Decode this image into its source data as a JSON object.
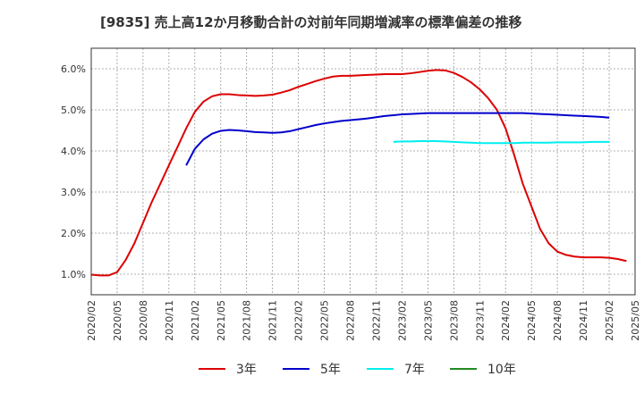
{
  "chart_data": {
    "type": "line",
    "title": "[9835]  売上高12か月移動合計の対前年同期増減率の標準偏差の推移",
    "xlabel": "",
    "ylabel": "",
    "ylim": [
      0.5,
      6.5
    ],
    "y_ticks": [
      1.0,
      2.0,
      3.0,
      4.0,
      5.0,
      6.0
    ],
    "y_tick_labels": [
      "1.0%",
      "2.0%",
      "3.0%",
      "4.0%",
      "5.0%",
      "6.0%"
    ],
    "x_tick_labels": [
      "2020/02",
      "2020/05",
      "2020/08",
      "2020/11",
      "2021/02",
      "2021/05",
      "2021/08",
      "2021/11",
      "2022/02",
      "2022/05",
      "2022/08",
      "2022/11",
      "2023/02",
      "2023/05",
      "2023/08",
      "2023/11",
      "2024/02",
      "2024/05",
      "2024/08",
      "2024/11",
      "2025/02",
      "2025/05"
    ],
    "x_range": [
      "2020/02",
      "2025/05"
    ],
    "grid": true,
    "legend_position": "bottom",
    "series": [
      {
        "name": "3年",
        "color": "#dd0000",
        "start": "2020/02",
        "values": [
          0.99,
          0.97,
          0.97,
          1.05,
          1.35,
          1.75,
          2.25,
          2.75,
          3.2,
          3.65,
          4.1,
          4.55,
          4.95,
          5.2,
          5.33,
          5.38,
          5.38,
          5.36,
          5.35,
          5.34,
          5.35,
          5.37,
          5.42,
          5.48,
          5.56,
          5.63,
          5.7,
          5.76,
          5.81,
          5.83,
          5.83,
          5.84,
          5.85,
          5.86,
          5.87,
          5.87,
          5.87,
          5.89,
          5.92,
          5.95,
          5.97,
          5.96,
          5.9,
          5.8,
          5.67,
          5.5,
          5.28,
          5.0,
          4.55,
          3.9,
          3.2,
          2.65,
          2.1,
          1.75,
          1.55,
          1.47,
          1.43,
          1.41,
          1.41,
          1.41,
          1.4,
          1.37,
          1.32
        ]
      },
      {
        "name": "5年",
        "color": "#0000cc",
        "start": "2021/01",
        "values": [
          3.65,
          4.05,
          4.28,
          4.42,
          4.49,
          4.51,
          4.5,
          4.48,
          4.46,
          4.45,
          4.44,
          4.45,
          4.48,
          4.53,
          4.58,
          4.63,
          4.67,
          4.7,
          4.73,
          4.75,
          4.77,
          4.79,
          4.82,
          4.85,
          4.87,
          4.89,
          4.9,
          4.91,
          4.92,
          4.92,
          4.92,
          4.92,
          4.92,
          4.92,
          4.92,
          4.92,
          4.92,
          4.92,
          4.92,
          4.92,
          4.91,
          4.9,
          4.89,
          4.88,
          4.87,
          4.86,
          4.85,
          4.84,
          4.83,
          4.81
        ]
      },
      {
        "name": "7年",
        "color": "#00eeee",
        "start": "2023/01",
        "values": [
          4.22,
          4.23,
          4.23,
          4.24,
          4.24,
          4.24,
          4.23,
          4.22,
          4.21,
          4.2,
          4.19,
          4.19,
          4.19,
          4.19,
          4.19,
          4.2,
          4.2,
          4.2,
          4.2,
          4.21,
          4.21,
          4.21,
          4.21,
          4.22,
          4.22,
          4.22
        ]
      },
      {
        "name": "10年",
        "color": "#228b22",
        "start": "2020/02",
        "values": []
      }
    ]
  }
}
